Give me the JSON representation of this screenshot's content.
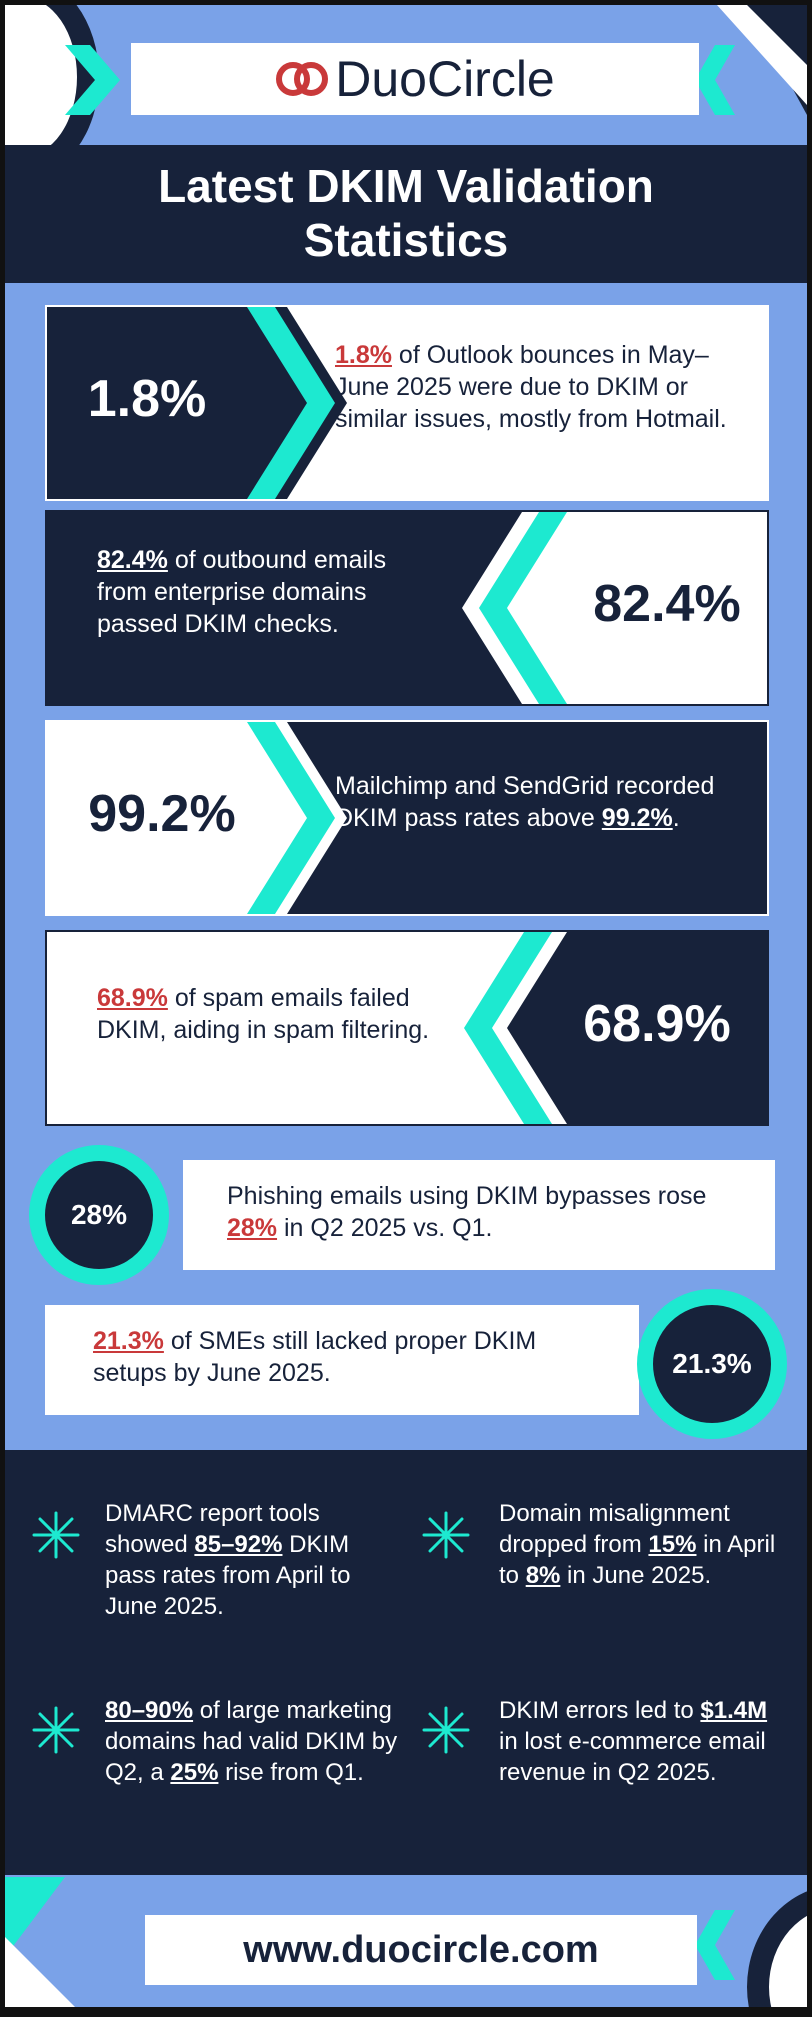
{
  "brand": {
    "name": "DuoCircle"
  },
  "title": {
    "line1": "Latest DKIM Validation",
    "line2": "Statistics"
  },
  "cards": [
    {
      "value": "1.8%",
      "highlight": "1.8%",
      "text": " of Outlook bounces in May–June 2025 were due to DKIM or similar issues, mostly from Hotmail."
    },
    {
      "value": "82.4%",
      "highlight": "82.4%",
      "text": " of outbound emails from enterprise domains passed DKIM checks."
    },
    {
      "value": "99.2%",
      "pre": "Mailchimp and SendGrid recorded DKIM pass rates above ",
      "highlight": "99.2%",
      "post": "."
    },
    {
      "value": "68.9%",
      "highlight": "68.9%",
      "text": " of spam emails failed DKIM, aiding in spam filtering."
    },
    {
      "value": "28%",
      "pre": "Phishing emails using DKIM bypasses rose ",
      "highlight": "28%",
      "post": " in Q2 2025 vs. Q1."
    },
    {
      "value": "21.3%",
      "highlight": "21.3%",
      "text": " of SMEs still lacked proper DKIM setups by June 2025."
    }
  ],
  "stats": [
    {
      "pre": "DMARC report tools showed ",
      "highlight": "85–92%",
      "post": " DKIM pass rates from April to June 2025."
    },
    {
      "pre": "Domain misalignment dropped from ",
      "highlight": "15%",
      "mid": " in April to ",
      "highlight2": "8%",
      "post": " in June 2025."
    },
    {
      "highlight": "80–90%",
      "post": " of large marketing domains had valid DKIM by Q2, a ",
      "highlight2": "25%",
      "post2": " rise from Q1."
    },
    {
      "pre": "DKIM errors led to ",
      "highlight": "$1.4M",
      "post": " in lost e-commerce email revenue in Q2 2025."
    }
  ],
  "footer": {
    "url": "www.duocircle.com"
  },
  "colors": {
    "navy": "#17223a",
    "teal": "#1de9d0",
    "blue": "#7aa2e8",
    "red": "#c9393a",
    "white": "#ffffff"
  }
}
